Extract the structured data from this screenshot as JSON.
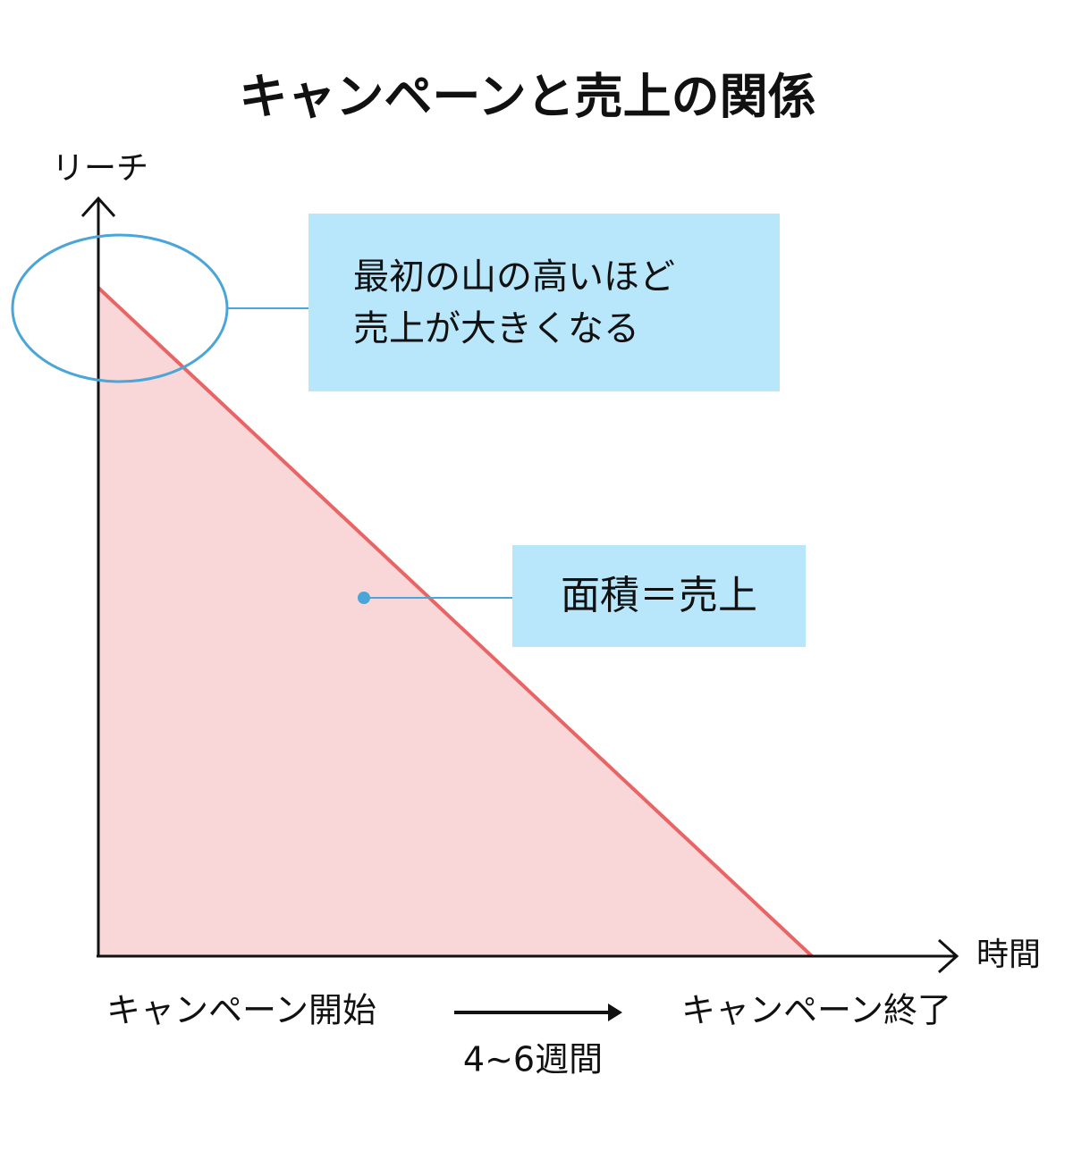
{
  "title": "キャンペーンと売上の関係",
  "axes": {
    "y_label": "リーチ",
    "x_label": "時間"
  },
  "callouts": [
    {
      "lines": [
        "最初の山の高いほど",
        "売上が大きくなる"
      ]
    },
    {
      "lines": [
        "面積＝売上"
      ]
    }
  ],
  "timeline": {
    "start": "キャンペーン開始",
    "end": "キャンペーン終了",
    "duration": "4~6週間"
  }
}
